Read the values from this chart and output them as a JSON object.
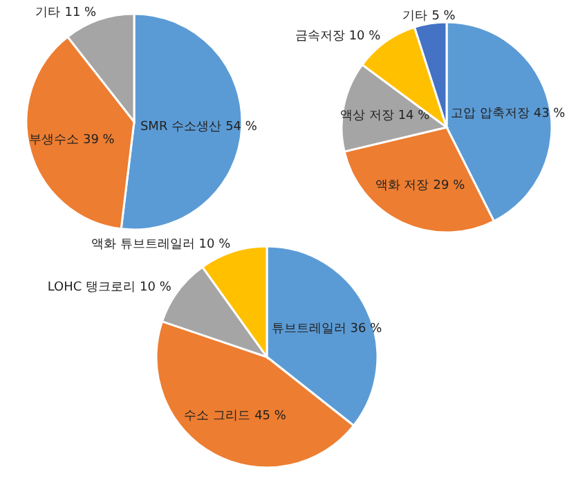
{
  "chart_data": [
    {
      "type": "pie",
      "categories": [
        "SMR 수소생산",
        "부생수소",
        "기타"
      ],
      "values": [
        54,
        39,
        11
      ],
      "value_labels": [
        "54 %",
        "39 %",
        "11 %"
      ],
      "colors": [
        "#5b9bd5",
        "#ed7d31",
        "#a5a5a5"
      ]
    },
    {
      "type": "pie",
      "categories": [
        "고압 압축저장",
        "액화 저장",
        "액상 저장",
        "금속저장",
        "기타"
      ],
      "values": [
        43,
        29,
        14,
        10,
        5
      ],
      "value_labels": [
        "43 %",
        "29 %",
        "14 %",
        "10 %",
        "5 %"
      ],
      "colors": [
        "#5b9bd5",
        "#ed7d31",
        "#a5a5a5",
        "#ffc000",
        "#4472c4"
      ]
    },
    {
      "type": "pie",
      "categories": [
        "튜브트레일러",
        "수소 그리드",
        "LOHC 탱크로리",
        "액화 튜브트레일러"
      ],
      "values": [
        36,
        45,
        10,
        10
      ],
      "value_labels": [
        "36 %",
        "45 %",
        "10 %",
        "10 %"
      ],
      "colors": [
        "#5b9bd5",
        "#ed7d31",
        "#a5a5a5",
        "#ffc000"
      ]
    }
  ]
}
